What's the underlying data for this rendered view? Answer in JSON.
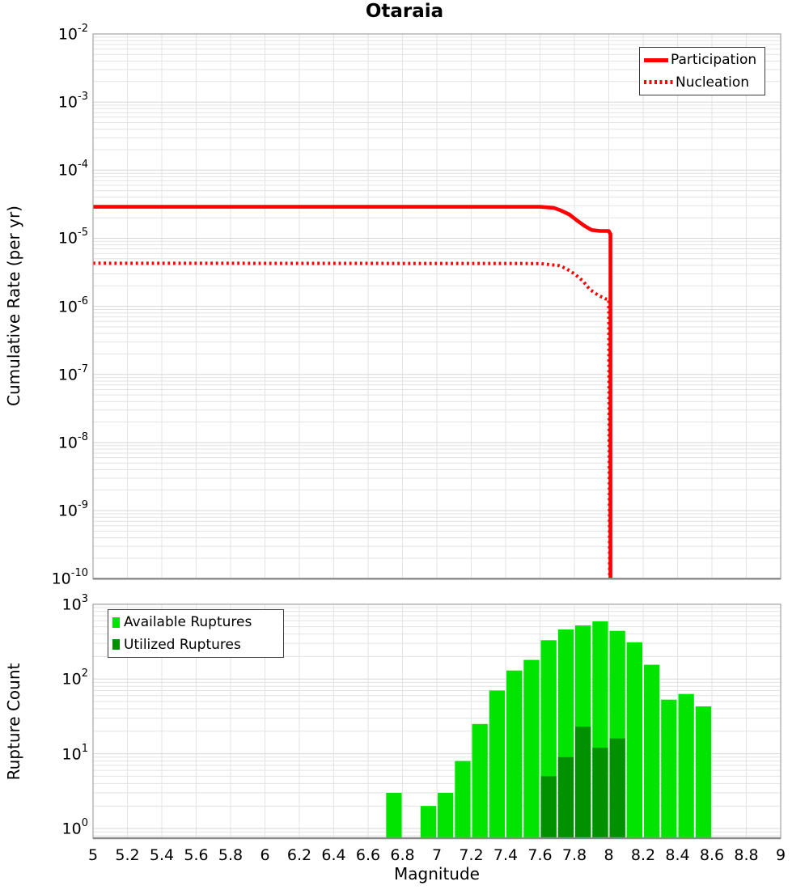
{
  "title": "Otaraia",
  "top_panel": {
    "ylabel": "Cumulative Rate (per yr)",
    "y_ticks": [
      "10^-2",
      "10^-3",
      "10^-4",
      "10^-5",
      "10^-6",
      "10^-7",
      "10^-8",
      "10^-9",
      "10^-10"
    ],
    "legend": {
      "participation": "Participation",
      "nucleation": "Nucleation"
    }
  },
  "bottom_panel": {
    "ylabel": "Rupture Count",
    "xlabel": "Magnitude",
    "y_ticks": [
      "10^3",
      "10^2",
      "10^1",
      "10^0"
    ],
    "x_ticks": [
      "5",
      "5.2",
      "5.4",
      "5.6",
      "5.8",
      "6",
      "6.2",
      "6.4",
      "6.6",
      "6.8",
      "7",
      "7.2",
      "7.4",
      "7.6",
      "7.8",
      "8",
      "8.2",
      "8.4",
      "8.6",
      "8.8",
      "9"
    ],
    "legend": {
      "available": "Available Ruptures",
      "utilized": "Utilized Ruptures"
    }
  },
  "colors": {
    "participation": "#ff0000",
    "nucleation": "#ff0000",
    "available": "#00e400",
    "utilized": "#009000",
    "grid_minor": "#e3e3e3",
    "grid_major": "#d7d7d7",
    "frame": "#a3a3a3",
    "axis_line": "#8a8a8a"
  },
  "chart_data": [
    {
      "type": "line",
      "title": "Otaraia",
      "xlabel": "Magnitude",
      "ylabel": "Cumulative Rate (per yr)",
      "x_range": [
        5,
        9
      ],
      "x_tick_step": 0.2,
      "y_range": [
        1e-10,
        0.01
      ],
      "y_scale": "log",
      "grid": true,
      "legend_position": "top-right",
      "series": [
        {
          "name": "Participation",
          "style": "solid",
          "color": "#ff0000",
          "points": [
            [
              5.0,
              2.9e-05
            ],
            [
              7.6,
              2.9e-05
            ],
            [
              7.68,
              2.8e-05
            ],
            [
              7.72,
              2.57e-05
            ],
            [
              7.77,
              2.24e-05
            ],
            [
              7.81,
              1.87e-05
            ],
            [
              7.86,
              1.51e-05
            ],
            [
              7.9,
              1.32e-05
            ],
            [
              7.95,
              1.28e-05
            ],
            [
              8.0,
              1.28e-05
            ],
            [
              8.01,
              1.15e-05
            ],
            [
              8.01,
              1e-10
            ]
          ]
        },
        {
          "name": "Nucleation",
          "style": "dotted",
          "color": "#ff0000",
          "points": [
            [
              5.0,
              4.3e-06
            ],
            [
              7.6,
              4.26e-06
            ],
            [
              7.71,
              3.96e-06
            ],
            [
              7.75,
              3.61e-06
            ],
            [
              7.8,
              3.01e-06
            ],
            [
              7.85,
              2.36e-06
            ],
            [
              7.89,
              1.77e-06
            ],
            [
              7.94,
              1.45e-06
            ],
            [
              7.98,
              1.29e-06
            ],
            [
              8.0,
              1.27e-06
            ],
            [
              8.005,
              1e-10
            ]
          ]
        }
      ]
    },
    {
      "type": "bar",
      "xlabel": "Magnitude",
      "ylabel": "Rupture Count",
      "x_range": [
        5,
        9
      ],
      "x_tick_step": 0.2,
      "y_range": [
        0.75,
        1000
      ],
      "y_scale": "log",
      "bin_width": 0.1,
      "legend_position": "top-left",
      "series": [
        {
          "name": "Available Ruptures",
          "color": "#00e400",
          "bins": [
            [
              6.75,
              3
            ],
            [
              6.95,
              2
            ],
            [
              7.05,
              3
            ],
            [
              7.15,
              8
            ],
            [
              7.25,
              25
            ],
            [
              7.35,
              70
            ],
            [
              7.45,
              130
            ],
            [
              7.55,
              180
            ],
            [
              7.65,
              330
            ],
            [
              7.75,
              460
            ],
            [
              7.85,
              520
            ],
            [
              7.95,
              590
            ],
            [
              8.05,
              440
            ],
            [
              8.15,
              310
            ],
            [
              8.25,
              155
            ],
            [
              8.35,
              53
            ],
            [
              8.45,
              63
            ],
            [
              8.55,
              43
            ]
          ]
        },
        {
          "name": "Utilized Ruptures",
          "color": "#009000",
          "bins": [
            [
              7.65,
              5
            ],
            [
              7.75,
              9
            ],
            [
              7.85,
              23
            ],
            [
              7.95,
              12
            ],
            [
              8.05,
              16
            ]
          ]
        }
      ]
    }
  ]
}
